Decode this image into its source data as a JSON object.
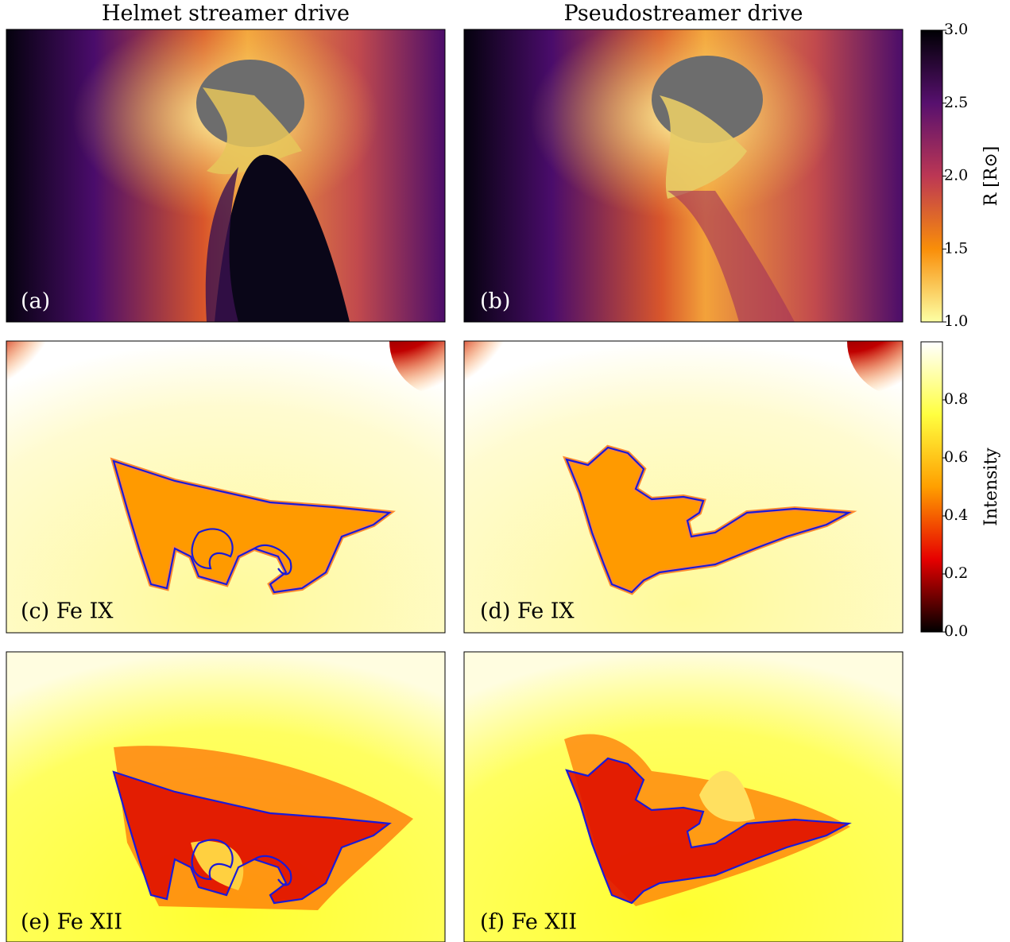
{
  "columns": [
    "Helmet streamer drive",
    "Pseudostreamer drive"
  ],
  "panels": [
    {
      "label": "(a)"
    },
    {
      "label": "(b)"
    },
    {
      "label": "(c) Fe IX"
    },
    {
      "label": "(d) Fe IX"
    },
    {
      "label": "(e) Fe XII"
    },
    {
      "label": "(f) Fe XII"
    }
  ],
  "colorbars": [
    {
      "label": "R [R⊙]",
      "lim": [
        1.0,
        3.0
      ],
      "ticks": [
        {
          "value": 1.0,
          "label": "1.0"
        },
        {
          "value": 1.5,
          "label": "1.5"
        },
        {
          "value": 2.0,
          "label": "2.0"
        },
        {
          "value": 2.5,
          "label": "2.5"
        },
        {
          "value": 3.0,
          "label": "3.0"
        }
      ],
      "colors": [
        "#fcffa4",
        "#f98e09",
        "#bc3754",
        "#57106e",
        "#000004"
      ]
    },
    {
      "label": "Intensity",
      "lim": [
        0,
        1
      ],
      "ticks": [
        {
          "value": 0,
          "label": "0.0"
        },
        0.2,
        0.4,
        0.6,
        0.8
      ],
      "colors": [
        "#000000",
        "#e60000",
        "#ff9f00",
        "#ffff40",
        "#ffffff"
      ]
    }
  ]
}
